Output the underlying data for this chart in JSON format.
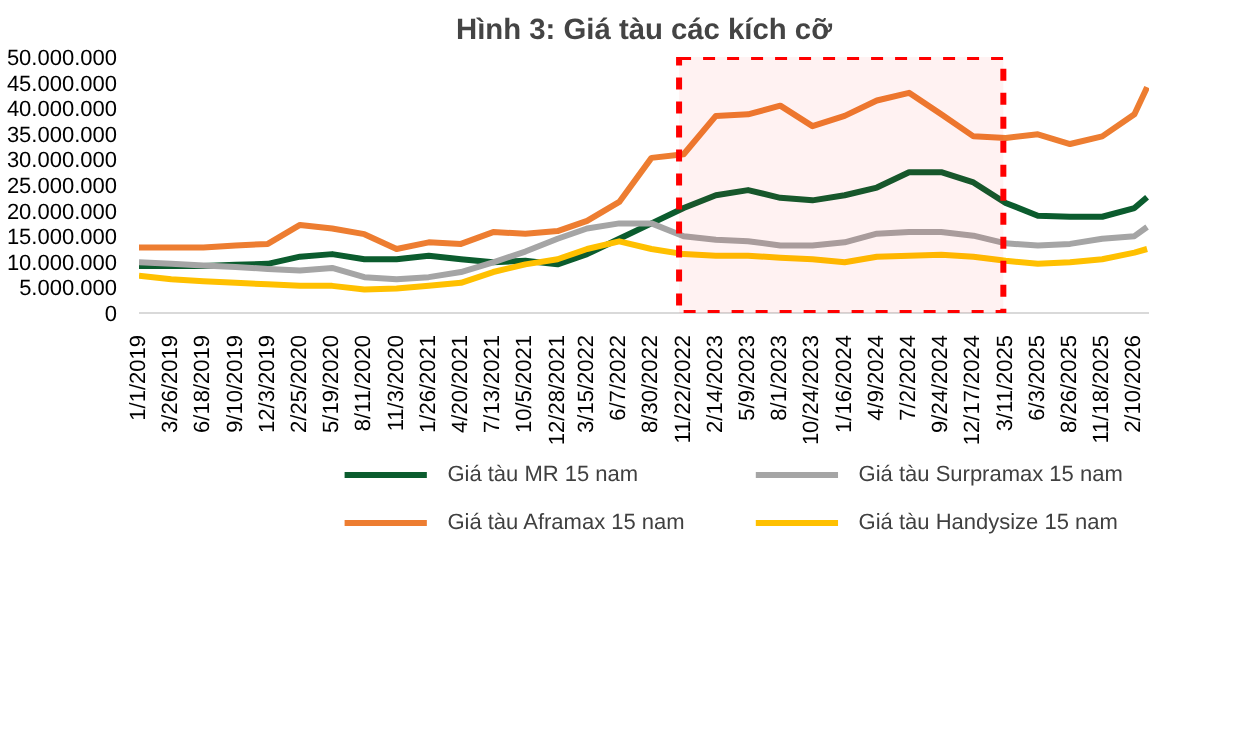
{
  "chart_data": {
    "type": "line",
    "title": "Hình 3: Giá tàu các kích cỡ",
    "x": [
      "2019-01-01",
      "2019-03-26",
      "2019-06-18",
      "2019-09-10",
      "2019-12-03",
      "2020-02-25",
      "2020-05-19",
      "2020-08-11",
      "2020-11-03",
      "2021-01-26",
      "2021-04-20",
      "2021-07-13",
      "2021-10-05",
      "2021-12-28",
      "2022-03-15",
      "2022-06-07",
      "2022-08-30",
      "2022-11-22",
      "2023-02-14",
      "2023-05-09",
      "2023-08-01",
      "2023-10-24",
      "2024-01-16",
      "2024-04-09",
      "2024-07-02",
      "2024-09-24",
      "2024-12-17",
      "2025-03-11",
      "2025-06-03",
      "2025-08-26",
      "2025-11-18",
      "2026-02-10",
      "2026-03-15"
    ],
    "series": [
      {
        "name": "Giá tàu MR 15 nam",
        "color": "#0b5c2e",
        "values": [
          9200000,
          9200000,
          9200000,
          9400000,
          9600000,
          11000000,
          11500000,
          10500000,
          10500000,
          11200000,
          10500000,
          9900000,
          10200000,
          9500000,
          11500000,
          14500000,
          17500000,
          20500000,
          23000000,
          24000000,
          22500000,
          22000000,
          23000000,
          24500000,
          27500000,
          27500000,
          25500000,
          21500000,
          19000000,
          18800000,
          18800000,
          20500000,
          22600000
        ]
      },
      {
        "name": "Giá tàu Aframax 15 nam",
        "color": "#ed7d31",
        "values": [
          12800000,
          12800000,
          12800000,
          13200000,
          13500000,
          17200000,
          16500000,
          15400000,
          12500000,
          13800000,
          13500000,
          15800000,
          15500000,
          16000000,
          18000000,
          21700000,
          30300000,
          31000000,
          38500000,
          38800000,
          40500000,
          36500000,
          38500000,
          41500000,
          43000000,
          38800000,
          34500000,
          34200000,
          34900000,
          33000000,
          34500000,
          38800000,
          44100000
        ]
      },
      {
        "name": "Giá tàu Surpramax 15 nam",
        "color": "#a5a5a5",
        "values": [
          9900000,
          9600000,
          9300000,
          9000000,
          8600000,
          8300000,
          8800000,
          7000000,
          6600000,
          7000000,
          8000000,
          9900000,
          12000000,
          14500000,
          16500000,
          17500000,
          17500000,
          15000000,
          14300000,
          14000000,
          13200000,
          13200000,
          13800000,
          15500000,
          15800000,
          15800000,
          15100000,
          13600000,
          13200000,
          13500000,
          14500000,
          15000000,
          16800000
        ]
      },
      {
        "name": "Giá tàu Handysize 15 nam",
        "color": "#ffc000",
        "values": [
          7300000,
          6600000,
          6200000,
          5900000,
          5600000,
          5300000,
          5300000,
          4600000,
          4800000,
          5300000,
          5900000,
          8000000,
          9500000,
          10500000,
          12500000,
          14000000,
          12500000,
          11500000,
          11200000,
          11200000,
          10800000,
          10500000,
          9900000,
          11000000,
          11200000,
          11400000,
          11000000,
          10200000,
          9600000,
          9900000,
          10500000,
          11800000,
          12500000
        ]
      }
    ],
    "xlim": [
      "2019-01-01",
      "2026-03-20"
    ],
    "xticks": [
      {
        "value": "2019-01-01",
        "label": "1/1/2019"
      },
      {
        "value": "2019-03-26",
        "label": "3/26/2019"
      },
      {
        "value": "2019-06-18",
        "label": "6/18/2019"
      },
      {
        "value": "2019-09-10",
        "label": "9/10/2019"
      },
      {
        "value": "2019-12-03",
        "label": "12/3/2019"
      },
      {
        "value": "2020-02-25",
        "label": "2/25/2020"
      },
      {
        "value": "2020-05-19",
        "label": "5/19/2020"
      },
      {
        "value": "2020-08-11",
        "label": "8/11/2020"
      },
      {
        "value": "2020-11-03",
        "label": "11/3/2020"
      },
      {
        "value": "2021-01-26",
        "label": "1/26/2021"
      },
      {
        "value": "2021-04-20",
        "label": "4/20/2021"
      },
      {
        "value": "2021-07-13",
        "label": "7/13/2021"
      },
      {
        "value": "2021-10-05",
        "label": "10/5/2021"
      },
      {
        "value": "2021-12-28",
        "label": "12/28/2021"
      },
      {
        "value": "2022-03-15",
        "label": "3/15/2022"
      },
      {
        "value": "2022-06-07",
        "label": "6/7/2022"
      },
      {
        "value": "2022-08-30",
        "label": "8/30/2022"
      },
      {
        "value": "2022-11-22",
        "label": "11/22/2022"
      },
      {
        "value": "2023-02-14",
        "label": "2/14/2023"
      },
      {
        "value": "2023-05-09",
        "label": "5/9/2023"
      },
      {
        "value": "2023-08-01",
        "label": "8/1/2023"
      },
      {
        "value": "2023-10-24",
        "label": "10/24/2023"
      },
      {
        "value": "2024-01-16",
        "label": "1/16/2024"
      },
      {
        "value": "2024-04-09",
        "label": "4/9/2024"
      },
      {
        "value": "2024-07-02",
        "label": "7/2/2024"
      },
      {
        "value": "2024-09-24",
        "label": "9/24/2024"
      },
      {
        "value": "2024-12-17",
        "label": "12/17/2024"
      },
      {
        "value": "2025-03-11",
        "label": "3/11/2025"
      },
      {
        "value": "2025-06-03",
        "label": "6/3/2025"
      },
      {
        "value": "2025-08-26",
        "label": "8/26/2025"
      },
      {
        "value": "2025-11-18",
        "label": "11/18/2025"
      },
      {
        "value": "2026-02-10",
        "label": "2/10/2026"
      }
    ],
    "ylim": [
      0,
      50000000
    ],
    "yticks": [
      {
        "value": 0,
        "label": "0"
      },
      {
        "value": 5000000,
        "label": "5.000.000"
      },
      {
        "value": 10000000,
        "label": "10.000.000"
      },
      {
        "value": 15000000,
        "label": "15.000.000"
      },
      {
        "value": 20000000,
        "label": "20.000.000"
      },
      {
        "value": 25000000,
        "label": "25.000.000"
      },
      {
        "value": 30000000,
        "label": "30.000.000"
      },
      {
        "value": 35000000,
        "label": "35.000.000"
      },
      {
        "value": 40000000,
        "label": "40.000.000"
      },
      {
        "value": 45000000,
        "label": "45.000.000"
      },
      {
        "value": 50000000,
        "label": "50.000.000"
      }
    ],
    "bands": [
      {
        "axis": "x",
        "from": "2022-11-10",
        "to": "2025-03-05",
        "color": "#ff0000"
      }
    ],
    "legend": "bottom",
    "grid": false,
    "marker": "none",
    "line_style": "solid"
  }
}
